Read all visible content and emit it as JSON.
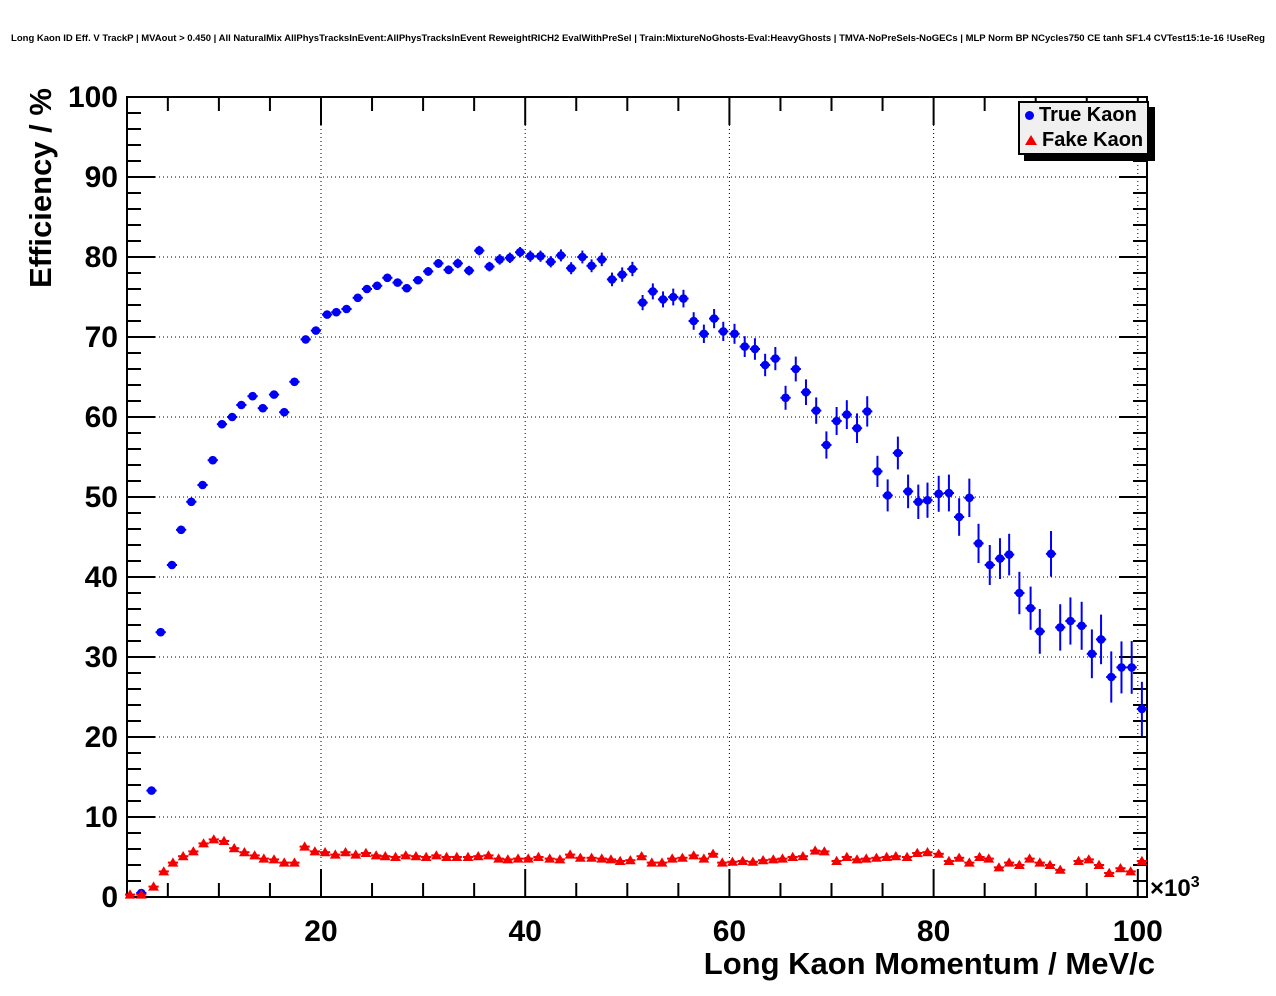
{
  "title": "Long Kaon ID Eff. V TrackP | MVAout > 0.450 | All NaturalMix AllPhysTracksInEvent:AllPhysTracksInEvent ReweightRICH2 EvalWithPreSel | Train:MixtureNoGhosts-Eval:HeavyGhosts | TMVA-NoPreSels-NoGECs | MLP Norm BP NCycles750 CE tanh SF1.4 CVTest15:1e-16 !UseReg",
  "axes": {
    "x": {
      "label": "Long Kaon Momentum / MeV/c",
      "major_ticks": [
        20,
        40,
        60,
        80,
        100
      ],
      "minor_step": 5,
      "exponent_base": "×10",
      "exponent_power": "3"
    },
    "y": {
      "label": "Efficiency / %",
      "major_ticks": [
        0,
        10,
        20,
        30,
        40,
        50,
        60,
        70,
        80,
        90,
        100
      ],
      "minor_step": 2
    }
  },
  "legend": {
    "items": [
      {
        "label": "True Kaon",
        "marker": "circle",
        "color": "#0000f5"
      },
      {
        "label": "Fake Kaon",
        "marker": "triangle",
        "color": "#f50000"
      }
    ]
  },
  "colors": {
    "true_kaon": "#0000f5",
    "fake_kaon": "#f50000",
    "frame": "#000000",
    "grid": "#000000",
    "legend_bg": "#f0f0f0"
  },
  "chart_data": {
    "type": "scatter",
    "title": "Long Kaon ID Eff. V TrackP | MVAout > 0.450",
    "xlabel": "Long Kaon Momentum / MeV/c",
    "ylabel": "Efficiency / %",
    "x_units_exponent": "×10³",
    "xlim": [
      1.0,
      100.9
    ],
    "ylim": [
      0,
      100
    ],
    "grid": "dotted",
    "legend_position": "top-right",
    "series": [
      {
        "name": "True Kaon",
        "marker": "circle",
        "color": "#0000f5",
        "ex": 0.5,
        "x": [
          2.4,
          3.4,
          4.3,
          5.4,
          6.3,
          7.3,
          8.4,
          9.4,
          10.3,
          11.3,
          12.2,
          13.3,
          14.3,
          15.4,
          16.4,
          17.4,
          18.5,
          19.5,
          20.6,
          21.5,
          22.5,
          23.6,
          24.5,
          25.5,
          26.5,
          27.5,
          28.4,
          29.5,
          30.5,
          31.5,
          32.5,
          33.4,
          34.5,
          35.5,
          36.5,
          37.5,
          38.5,
          39.5,
          40.5,
          41.5,
          42.5,
          43.5,
          44.5,
          45.6,
          46.5,
          47.5,
          48.5,
          49.5,
          50.5,
          51.5,
          52.5,
          53.5,
          54.5,
          55.5,
          56.5,
          57.5,
          58.5,
          59.4,
          60.5,
          61.5,
          62.5,
          63.5,
          64.5,
          65.5,
          66.5,
          67.5,
          68.5,
          69.5,
          70.5,
          71.5,
          72.5,
          73.5,
          74.5,
          75.5,
          76.5,
          77.5,
          78.5,
          79.4,
          80.5,
          81.5,
          82.5,
          83.5,
          84.4,
          85.5,
          86.5,
          87.4,
          88.4,
          89.5,
          90.4,
          91.5,
          92.4,
          93.4,
          94.5,
          95.5,
          96.4,
          97.4,
          98.4,
          99.4,
          100.4
        ],
        "y": [
          0.5,
          13.3,
          33.1,
          41.5,
          45.9,
          49.4,
          51.5,
          54.6,
          59.1,
          60.0,
          61.5,
          62.6,
          61.1,
          62.8,
          60.6,
          64.4,
          69.7,
          70.8,
          72.8,
          73.1,
          73.5,
          74.9,
          76.0,
          76.4,
          77.4,
          76.8,
          76.1,
          77.1,
          78.2,
          79.2,
          78.4,
          79.2,
          78.3,
          80.8,
          78.8,
          79.7,
          79.9,
          80.6,
          80.1,
          80.1,
          79.4,
          80.2,
          78.6,
          80.0,
          78.9,
          79.7,
          77.2,
          77.8,
          78.5,
          74.3,
          75.7,
          74.7,
          75.0,
          74.8,
          72.0,
          70.4,
          72.3,
          70.7,
          70.4,
          68.8,
          68.5,
          66.5,
          67.3,
          62.4,
          66.0,
          63.1,
          60.8,
          56.5,
          59.5,
          60.3,
          58.6,
          60.7,
          53.2,
          50.2,
          55.5,
          50.7,
          49.4,
          49.6,
          50.4,
          50.5,
          47.5,
          49.9,
          44.2,
          41.5,
          42.3,
          42.8,
          38.0,
          36.1,
          33.2,
          42.9,
          33.7,
          34.5,
          33.9,
          30.4,
          32.2,
          27.5,
          28.7,
          28.7,
          23.5
        ],
        "ey": [
          0.2,
          0.4,
          0.5,
          0.5,
          0.5,
          0.5,
          0.5,
          0.5,
          0.5,
          0.45,
          0.45,
          0.45,
          0.45,
          0.45,
          0.45,
          0.45,
          0.45,
          0.45,
          0.45,
          0.45,
          0.45,
          0.5,
          0.5,
          0.5,
          0.5,
          0.5,
          0.5,
          0.5,
          0.55,
          0.55,
          0.55,
          0.6,
          0.6,
          0.6,
          0.6,
          0.65,
          0.65,
          0.65,
          0.7,
          0.7,
          0.7,
          0.75,
          0.75,
          0.8,
          0.8,
          0.85,
          0.85,
          0.9,
          0.9,
          0.95,
          1.0,
          1.0,
          1.05,
          1.1,
          1.1,
          1.15,
          1.2,
          1.2,
          1.25,
          1.3,
          1.35,
          1.4,
          1.45,
          1.5,
          1.55,
          1.6,
          1.65,
          1.7,
          1.75,
          1.8,
          1.85,
          1.9,
          1.95,
          2.0,
          2.05,
          2.1,
          2.15,
          2.2,
          2.25,
          2.3,
          2.35,
          2.4,
          2.45,
          2.5,
          2.55,
          2.6,
          2.65,
          2.7,
          2.8,
          2.85,
          2.9,
          2.95,
          3.0,
          3.05,
          3.1,
          3.2,
          3.25,
          3.3,
          3.4
        ]
      },
      {
        "name": "Fake Kaon",
        "marker": "triangle",
        "color": "#f50000",
        "ex": 0.5,
        "x": [
          1.3,
          2.4,
          3.6,
          4.6,
          5.5,
          6.5,
          7.5,
          8.5,
          9.5,
          10.5,
          11.5,
          12.5,
          13.5,
          14.4,
          15.4,
          16.4,
          17.4,
          18.4,
          19.4,
          20.4,
          21.4,
          22.4,
          23.4,
          24.4,
          25.4,
          26.3,
          27.3,
          28.3,
          29.3,
          30.3,
          31.3,
          32.3,
          33.3,
          34.4,
          35.4,
          36.4,
          37.4,
          38.3,
          39.3,
          40.3,
          41.3,
          42.4,
          43.4,
          44.4,
          45.4,
          46.5,
          47.5,
          48.4,
          49.3,
          50.3,
          51.4,
          52.4,
          53.4,
          54.4,
          55.4,
          56.5,
          57.5,
          58.4,
          59.3,
          60.3,
          61.3,
          62.3,
          63.3,
          64.3,
          65.2,
          66.2,
          67.2,
          68.4,
          69.3,
          70.5,
          71.5,
          72.5,
          73.4,
          74.4,
          75.4,
          76.3,
          77.4,
          78.4,
          79.4,
          80.5,
          81.5,
          82.5,
          83.5,
          84.5,
          85.4,
          86.4,
          87.4,
          88.4,
          89.4,
          90.4,
          91.4,
          92.4,
          94.2,
          95.2,
          96.2,
          97.2,
          98.3,
          99.3,
          100.4
        ],
        "y": [
          0.3,
          0.3,
          1.3,
          3.2,
          4.3,
          5.1,
          5.7,
          6.7,
          7.2,
          7.0,
          6.1,
          5.6,
          5.2,
          4.8,
          4.7,
          4.3,
          4.3,
          6.3,
          5.7,
          5.6,
          5.3,
          5.6,
          5.3,
          5.5,
          5.2,
          5.1,
          5.0,
          5.2,
          5.1,
          5.0,
          5.2,
          5.0,
          5.0,
          5.0,
          5.1,
          5.2,
          4.8,
          4.7,
          4.8,
          4.8,
          5.0,
          4.8,
          4.7,
          5.3,
          4.9,
          4.9,
          4.8,
          4.7,
          4.5,
          4.6,
          5.1,
          4.3,
          4.3,
          4.8,
          4.9,
          5.2,
          4.8,
          5.4,
          4.3,
          4.4,
          4.5,
          4.4,
          4.6,
          4.7,
          4.8,
          5.0,
          5.1,
          5.8,
          5.7,
          4.5,
          5.0,
          4.7,
          4.8,
          4.9,
          5.0,
          5.1,
          5.0,
          5.5,
          5.6,
          5.4,
          4.5,
          4.9,
          4.3,
          5.0,
          4.8,
          3.7,
          4.3,
          4.0,
          4.8,
          4.3,
          4.0,
          3.4,
          4.5,
          4.7,
          4.0,
          3.0,
          3.6,
          3.2,
          4.5
        ],
        "ey": 0.2
      }
    ]
  }
}
